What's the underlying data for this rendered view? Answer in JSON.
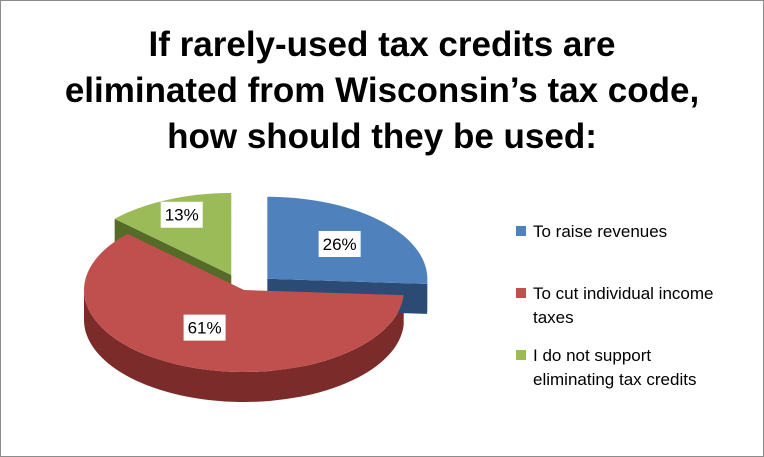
{
  "title_lines": [
    "If rarely-used tax credits are",
    "eliminated from Wisconsin’s tax code,",
    "how should they be used:"
  ],
  "chart_data": {
    "type": "pie",
    "title": "If rarely-used tax credits are eliminated from Wisconsin’s tax code, how should they be used:",
    "legend_position": "right",
    "slices": [
      {
        "label": "To raise revenues",
        "value": 26,
        "display": "26%",
        "color": "#4f81bd",
        "side_color": "#2c4b74",
        "exploded": true
      },
      {
        "label": "To cut individual income taxes",
        "value": 61,
        "display": "61%",
        "color": "#c0504d",
        "side_color": "#7b2b29",
        "exploded": false
      },
      {
        "label": "I do not support eliminating tax credits",
        "value": 13,
        "display": "13%",
        "color": "#9bbb59",
        "side_color": "#556b27",
        "exploded": true
      }
    ]
  },
  "legend": [
    {
      "line1": "To raise revenues",
      "line2": "",
      "color": "#4f81bd"
    },
    {
      "line1": "To cut individual income",
      "line2": "taxes",
      "color": "#c0504d"
    },
    {
      "line1": "I do not support",
      "line2": "eliminating tax credits",
      "color": "#9bbb59"
    }
  ]
}
